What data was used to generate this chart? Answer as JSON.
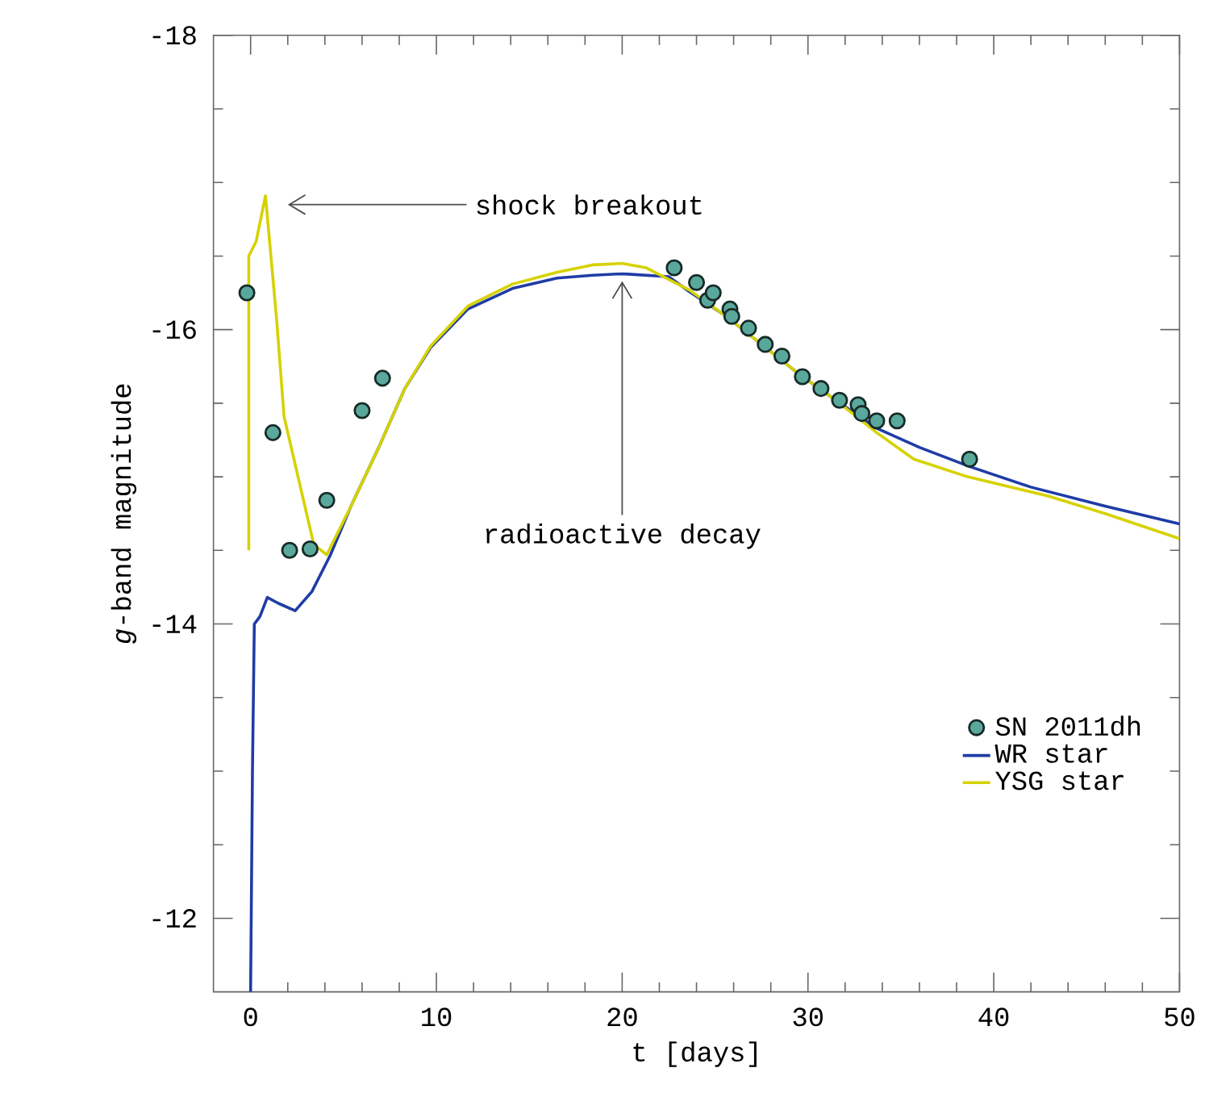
{
  "chart_data": {
    "type": "line",
    "xlabel": "t [days]",
    "ylabel": "*g*-band magnitude",
    "xlim": [
      -2,
      50
    ],
    "ylim": [
      -11.5,
      -18
    ],
    "xticks": [
      0,
      10,
      20,
      30,
      40,
      50
    ],
    "yticks": [
      -18,
      -16,
      -14,
      -12
    ],
    "legend": "bottom right",
    "series": [
      {
        "name": "SN 2011dh",
        "type": "scatter",
        "marker": "circle",
        "color": "#5aa89c",
        "x": [
          -0.2,
          1.2,
          2.1,
          3.2,
          4.1,
          6.0,
          7.1,
          22.8,
          24.0,
          24.6,
          24.9,
          25.8,
          25.9,
          26.8,
          27.7,
          28.6,
          29.7,
          30.7,
          31.7,
          32.7,
          32.9,
          33.7,
          34.8,
          38.7
        ],
        "values": [
          -16.25,
          -15.3,
          -14.5,
          -14.51,
          -14.84,
          -15.45,
          -15.67,
          -16.42,
          -16.32,
          -16.2,
          -16.25,
          -16.14,
          -16.09,
          -16.01,
          -15.9,
          -15.82,
          -15.68,
          -15.6,
          -15.52,
          -15.49,
          -15.43,
          -15.38,
          -15.38,
          -15.12
        ]
      },
      {
        "name": "WR star",
        "line_style": "solid",
        "color": "#1f3ca6",
        "x": [
          0.0,
          0.1,
          0.2,
          0.5,
          0.9,
          1.5,
          2.4,
          3.3,
          4.3,
          5.4,
          6.9,
          8.3,
          9.7,
          11.7,
          14.1,
          16.5,
          18.4,
          20.0,
          22.5,
          23.6,
          25.5,
          27.5,
          29.5,
          31.5,
          33.7,
          36.0,
          38.7,
          42.0,
          46.0,
          50.0
        ],
        "values": [
          -11.5,
          -13.0,
          -14.0,
          -14.05,
          -14.18,
          -14.14,
          -14.09,
          -14.22,
          -14.47,
          -14.8,
          -15.2,
          -15.6,
          -15.88,
          -16.14,
          -16.28,
          -16.35,
          -16.37,
          -16.38,
          -16.36,
          -16.26,
          -16.1,
          -15.9,
          -15.7,
          -15.52,
          -15.33,
          -15.2,
          -15.07,
          -14.93,
          -14.8,
          -14.68
        ]
      },
      {
        "name": "YSG star",
        "line_style": "solid",
        "color": "#d6d200",
        "x": [
          -0.1,
          -0.1,
          0.3,
          0.8,
          1.4,
          1.8,
          3.4,
          4.1,
          5.4,
          6.9,
          8.3,
          9.7,
          11.7,
          14.1,
          16.5,
          18.4,
          20.0,
          21.3,
          23.6,
          25.5,
          27.5,
          29.5,
          31.5,
          33.7,
          35.7,
          38.6,
          42.9,
          46.0,
          50.0
        ],
        "values": [
          -14.5,
          -16.5,
          -16.6,
          -16.91,
          -16.07,
          -15.41,
          -14.54,
          -14.47,
          -14.8,
          -15.2,
          -15.6,
          -15.89,
          -16.16,
          -16.31,
          -16.39,
          -16.44,
          -16.45,
          -16.42,
          -16.27,
          -16.1,
          -15.9,
          -15.7,
          -15.52,
          -15.3,
          -15.12,
          -15.0,
          -14.87,
          -14.75,
          -14.58
        ]
      }
    ],
    "annotations": [
      "shock breakout",
      {
        "text": "radioactive decay",
        "x": 20,
        "y": -16.38
      }
    ]
  }
}
